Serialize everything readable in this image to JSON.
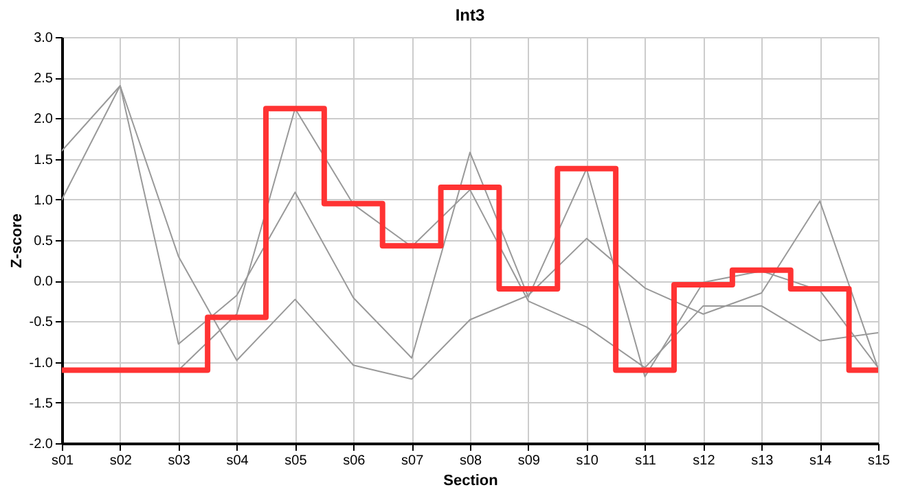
{
  "chart_data": {
    "type": "line",
    "title": "Int3",
    "xlabel": "Section",
    "ylabel": "Z-score",
    "categories": [
      "s01",
      "s02",
      "s03",
      "s04",
      "s05",
      "s06",
      "s07",
      "s08",
      "s09",
      "s10",
      "s11",
      "s12",
      "s13",
      "s14",
      "s15"
    ],
    "series": [
      {
        "color": "#999999",
        "values": [
          1.6,
          2.4,
          0.3,
          -0.98,
          -0.23,
          -1.04,
          -1.21,
          -0.48,
          -0.18,
          0.52,
          -0.09,
          -0.41,
          -0.15,
          0.98,
          -1.08
        ]
      },
      {
        "color": "#999999",
        "values": [
          1.0,
          2.4,
          -0.78,
          -0.18,
          1.09,
          -0.21,
          -0.95,
          1.58,
          -0.2,
          1.38,
          -1.18,
          -0.02,
          0.12,
          -0.12,
          -1.07
        ]
      },
      {
        "color": "#999999",
        "values": [
          null,
          -1.1,
          -1.1,
          -0.41,
          2.12,
          0.94,
          0.42,
          1.12,
          -0.25,
          -0.57,
          -1.07,
          -0.31,
          -0.31,
          -0.74,
          -0.64
        ]
      },
      {
        "type": "step",
        "color": "#ff3333",
        "values": [
          -1.1,
          -1.1,
          -1.1,
          -0.45,
          2.12,
          0.95,
          0.43,
          1.15,
          -0.1,
          1.38,
          -1.1,
          -0.05,
          0.13,
          -0.1,
          -1.1
        ]
      }
    ],
    "ylim": [
      -2.0,
      3.0
    ],
    "yticks": [
      {
        "value": -2,
        "label": "-2.0"
      },
      {
        "value": -1.5,
        "label": "-1.5"
      },
      {
        "value": -1,
        "label": "-1.0"
      },
      {
        "value": -0.5,
        "label": "-0.5"
      },
      {
        "value": 0,
        "label": "0.0"
      },
      {
        "value": 0.5,
        "label": "0.5"
      },
      {
        "value": 1,
        "label": "1.0"
      },
      {
        "value": 1.5,
        "label": "1.5"
      },
      {
        "value": 2,
        "label": "2.0"
      },
      {
        "value": 2.5,
        "label": "2.5"
      },
      {
        "value": 3,
        "label": "3.0"
      }
    ],
    "grid": true
  }
}
